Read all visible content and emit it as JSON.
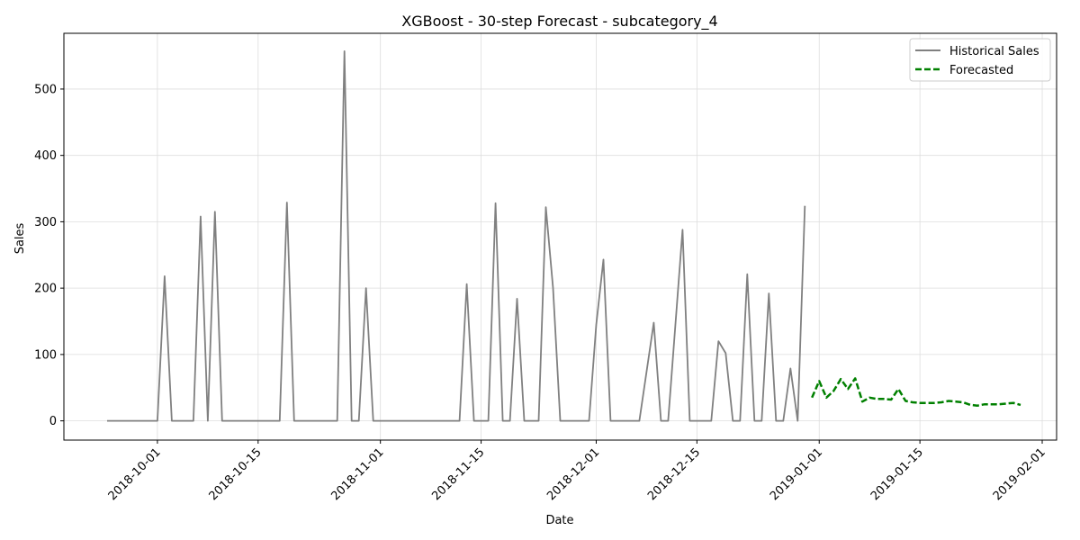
{
  "chart_data": {
    "type": "line",
    "title": "XGBoost - 30-step Forecast - subcategory_4",
    "xlabel": "Date",
    "ylabel": "Sales",
    "x_is_date": true,
    "xlim": [
      "2018-09-18",
      "2019-02-03"
    ],
    "ylim": [
      -29,
      584
    ],
    "xticks": [
      "2018-10-01",
      "2018-10-15",
      "2018-11-01",
      "2018-11-15",
      "2018-12-01",
      "2018-12-15",
      "2019-01-01",
      "2019-01-15",
      "2019-02-01"
    ],
    "yticks": [
      0,
      100,
      200,
      300,
      400,
      500
    ],
    "grid": true,
    "legend_position": "top-right",
    "series": [
      {
        "name": "Historical Sales",
        "color": "#808080",
        "style": "solid",
        "points": [
          [
            "2018-09-24",
            0
          ],
          [
            "2018-09-25",
            0
          ],
          [
            "2018-09-26",
            0
          ],
          [
            "2018-09-27",
            0
          ],
          [
            "2018-09-28",
            0
          ],
          [
            "2018-09-29",
            0
          ],
          [
            "2018-09-30",
            0
          ],
          [
            "2018-10-01",
            0
          ],
          [
            "2018-10-02",
            218
          ],
          [
            "2018-10-03",
            0
          ],
          [
            "2018-10-04",
            0
          ],
          [
            "2018-10-05",
            0
          ],
          [
            "2018-10-06",
            0
          ],
          [
            "2018-10-07",
            308
          ],
          [
            "2018-10-08",
            0
          ],
          [
            "2018-10-09",
            315
          ],
          [
            "2018-10-10",
            0
          ],
          [
            "2018-10-11",
            0
          ],
          [
            "2018-10-12",
            0
          ],
          [
            "2018-10-13",
            0
          ],
          [
            "2018-10-14",
            0
          ],
          [
            "2018-10-15",
            0
          ],
          [
            "2018-10-16",
            0
          ],
          [
            "2018-10-17",
            0
          ],
          [
            "2018-10-18",
            0
          ],
          [
            "2018-10-19",
            329
          ],
          [
            "2018-10-20",
            0
          ],
          [
            "2018-10-21",
            0
          ],
          [
            "2018-10-22",
            0
          ],
          [
            "2018-10-23",
            0
          ],
          [
            "2018-10-24",
            0
          ],
          [
            "2018-10-25",
            0
          ],
          [
            "2018-10-26",
            0
          ],
          [
            "2018-10-27",
            557
          ],
          [
            "2018-10-28",
            0
          ],
          [
            "2018-10-29",
            0
          ],
          [
            "2018-10-30",
            200
          ],
          [
            "2018-10-31",
            0
          ],
          [
            "2018-11-01",
            0
          ],
          [
            "2018-11-02",
            0
          ],
          [
            "2018-11-03",
            0
          ],
          [
            "2018-11-04",
            0
          ],
          [
            "2018-11-05",
            0
          ],
          [
            "2018-11-06",
            0
          ],
          [
            "2018-11-07",
            0
          ],
          [
            "2018-11-08",
            0
          ],
          [
            "2018-11-09",
            0
          ],
          [
            "2018-11-10",
            0
          ],
          [
            "2018-11-11",
            0
          ],
          [
            "2018-11-12",
            0
          ],
          [
            "2018-11-13",
            206
          ],
          [
            "2018-11-14",
            0
          ],
          [
            "2018-11-15",
            0
          ],
          [
            "2018-11-16",
            0
          ],
          [
            "2018-11-17",
            328
          ],
          [
            "2018-11-18",
            0
          ],
          [
            "2018-11-19",
            0
          ],
          [
            "2018-11-20",
            184
          ],
          [
            "2018-11-21",
            0
          ],
          [
            "2018-11-22",
            0
          ],
          [
            "2018-11-23",
            0
          ],
          [
            "2018-11-24",
            322
          ],
          [
            "2018-11-25",
            200
          ],
          [
            "2018-11-26",
            0
          ],
          [
            "2018-11-27",
            0
          ],
          [
            "2018-11-28",
            0
          ],
          [
            "2018-11-29",
            0
          ],
          [
            "2018-11-30",
            0
          ],
          [
            "2018-12-01",
            145
          ],
          [
            "2018-12-02",
            243
          ],
          [
            "2018-12-03",
            0
          ],
          [
            "2018-12-04",
            0
          ],
          [
            "2018-12-05",
            0
          ],
          [
            "2018-12-06",
            0
          ],
          [
            "2018-12-07",
            0
          ],
          [
            "2018-12-09",
            148
          ],
          [
            "2018-12-10",
            0
          ],
          [
            "2018-12-11",
            0
          ],
          [
            "2018-12-13",
            288
          ],
          [
            "2018-12-14",
            0
          ],
          [
            "2018-12-15",
            0
          ],
          [
            "2018-12-16",
            0
          ],
          [
            "2018-12-17",
            0
          ],
          [
            "2018-12-18",
            120
          ],
          [
            "2018-12-19",
            102
          ],
          [
            "2018-12-20",
            0
          ],
          [
            "2018-12-21",
            0
          ],
          [
            "2018-12-22",
            221
          ],
          [
            "2018-12-23",
            0
          ],
          [
            "2018-12-24",
            0
          ],
          [
            "2018-12-25",
            192
          ],
          [
            "2018-12-26",
            0
          ],
          [
            "2018-12-27",
            0
          ],
          [
            "2018-12-28",
            79
          ],
          [
            "2018-12-29",
            0
          ],
          [
            "2018-12-30",
            324
          ]
        ]
      },
      {
        "name": "Forecasted",
        "color": "#008000",
        "style": "dashed",
        "points": [
          [
            "2018-12-31",
            35
          ],
          [
            "2019-01-01",
            60
          ],
          [
            "2019-01-02",
            35
          ],
          [
            "2019-01-03",
            45
          ],
          [
            "2019-01-04",
            63
          ],
          [
            "2019-01-05",
            48
          ],
          [
            "2019-01-06",
            64
          ],
          [
            "2019-01-07",
            29
          ],
          [
            "2019-01-08",
            35
          ],
          [
            "2019-01-09",
            33
          ],
          [
            "2019-01-10",
            33
          ],
          [
            "2019-01-11",
            32
          ],
          [
            "2019-01-12",
            48
          ],
          [
            "2019-01-13",
            30
          ],
          [
            "2019-01-14",
            28
          ],
          [
            "2019-01-15",
            27
          ],
          [
            "2019-01-16",
            27
          ],
          [
            "2019-01-17",
            27
          ],
          [
            "2019-01-18",
            28
          ],
          [
            "2019-01-19",
            30
          ],
          [
            "2019-01-20",
            29
          ],
          [
            "2019-01-21",
            28
          ],
          [
            "2019-01-22",
            24
          ],
          [
            "2019-01-23",
            23
          ],
          [
            "2019-01-24",
            25
          ],
          [
            "2019-01-25",
            25
          ],
          [
            "2019-01-26",
            25
          ],
          [
            "2019-01-27",
            26
          ],
          [
            "2019-01-28",
            27
          ],
          [
            "2019-01-29",
            24
          ]
        ]
      }
    ]
  }
}
